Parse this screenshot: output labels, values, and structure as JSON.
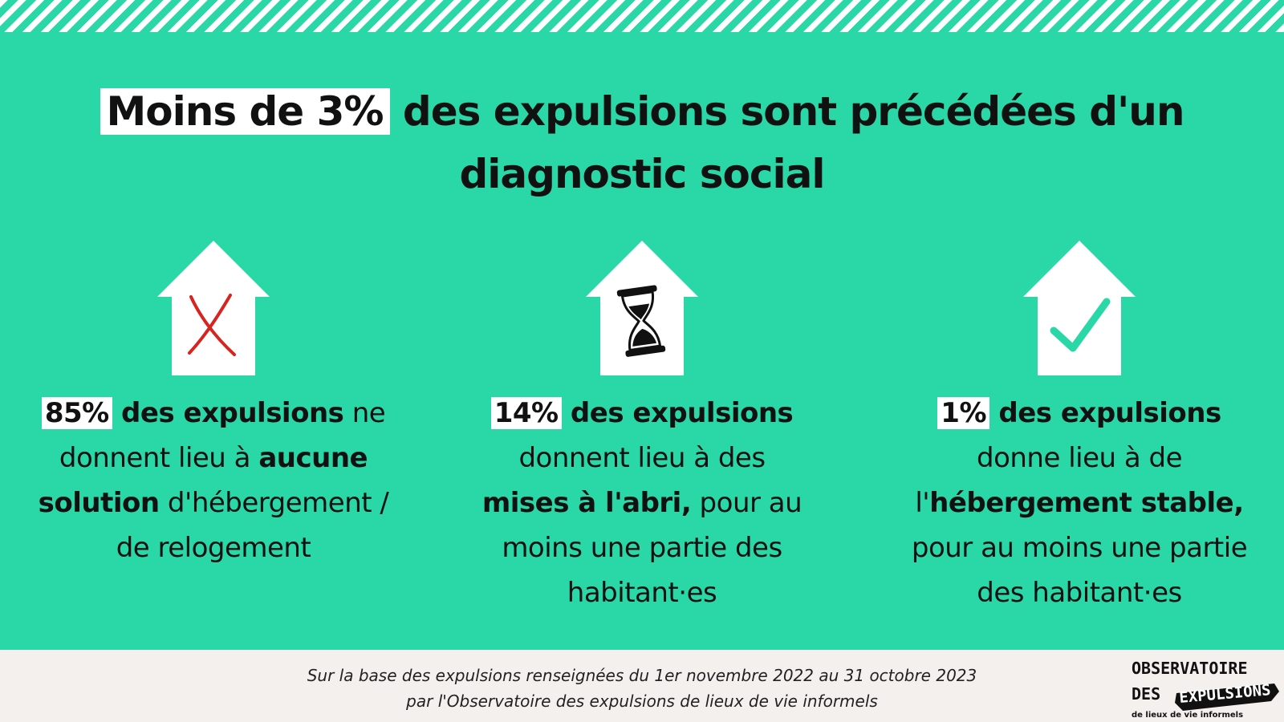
{
  "colors": {
    "background": "#2ad8a7",
    "highlight": "#ffffff",
    "cross": "#d8231f",
    "check": "#2ad8a7",
    "footer": "#f4f0ee"
  },
  "title": {
    "highlight": "Moins de 3%",
    "line1_rest": " des expulsions sont précédées d'un",
    "line2": "diagnostic social"
  },
  "columns": [
    {
      "icon": "x-icon",
      "pct": "85%",
      "b1": " des expulsions",
      "t1": " ne",
      "t2": "donnent lieu à ",
      "b2": "aucune",
      "b3": "solution",
      "t3": " d'hébergement /",
      "t4": "de relogement"
    },
    {
      "icon": "hourglass-icon",
      "pct": "14%",
      "b1": " des expulsions",
      "t1": "donnent lieu à des",
      "b2": "mises à l'abri,",
      "t2": " pour au",
      "t3": "moins une partie des",
      "t4": "habitant·es"
    },
    {
      "icon": "checkmark-icon",
      "pct": "1%",
      "b1": " des expulsions",
      "t1": "donne lieu à de",
      "t2": "l'",
      "b2": "hébergement stable,",
      "t3": "pour au moins une partie",
      "t4": "des habitant·es"
    }
  ],
  "footer": {
    "line1": "Sur la base des expulsions renseignées du 1er novembre 2022 au 31 octobre 2023",
    "line2": "par l'Observatoire des expulsions de lieux de vie informels"
  },
  "logo": {
    "line1": "OBSERVATOIRE",
    "line2a": "DES",
    "line2b": "EXPULSIONS",
    "line3": "de lieux de vie informels"
  }
}
